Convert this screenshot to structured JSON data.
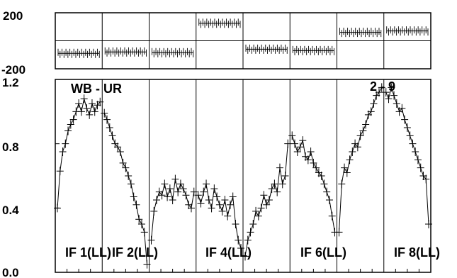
{
  "chart_data": {
    "type": "line",
    "title": "",
    "baseline_label": "WB - UR",
    "corr_label": "2 - 9",
    "grid": false,
    "color": "#000000",
    "phase_panel": {
      "ylim": [
        -200,
        200
      ],
      "ticks": [
        "200",
        "-200"
      ],
      "description_values": "approximate mean phase (deg) per IF panel",
      "values": [
        -90,
        -80,
        -85,
        125,
        -60,
        -70,
        60,
        70
      ]
    },
    "amp_panel": {
      "ylim": [
        0.0,
        1.2
      ],
      "ticks": [
        "1.2",
        "0.8",
        "0.4",
        "0.0"
      ]
    },
    "if_labels": [
      "IF 1(LL)",
      "IF 2(LL)",
      "IF 4(LL)",
      "IF 6(LL)",
      "IF 8(LL)"
    ],
    "amplitude_series": [
      [
        0.4,
        0.63,
        0.75,
        0.8,
        0.88,
        0.92,
        0.95,
        1.0,
        1.05,
        1.0,
        1.08,
        1.02,
        0.98,
        1.05,
        1.0,
        1.04,
        1.06
      ],
      [
        0.99,
        0.95,
        0.9,
        0.85,
        0.8,
        0.78,
        0.75,
        0.68,
        0.65,
        0.6,
        0.55,
        0.47,
        0.42,
        0.33,
        0.3,
        0.25,
        0.05
      ],
      [
        0.2,
        0.38,
        0.45,
        0.5,
        0.48,
        0.55,
        0.47,
        0.52,
        0.45,
        0.58,
        0.5,
        0.55,
        0.52,
        0.48,
        0.42,
        0.4,
        0.5
      ],
      [
        0.48,
        0.43,
        0.5,
        0.55,
        0.45,
        0.4,
        0.52,
        0.47,
        0.42,
        0.38,
        0.45,
        0.35,
        0.42,
        0.47,
        0.3,
        0.2,
        0.15
      ],
      [
        0.1,
        0.2,
        0.25,
        0.3,
        0.38,
        0.35,
        0.4,
        0.48,
        0.42,
        0.45,
        0.52,
        0.55,
        0.5,
        0.65,
        0.55,
        0.6,
        0.8
      ],
      [
        0.85,
        0.8,
        0.75,
        0.78,
        0.82,
        0.72,
        0.7,
        0.75,
        0.68,
        0.65,
        0.62,
        0.6,
        0.55,
        0.5,
        0.45,
        0.35,
        0.25
      ],
      [
        0.25,
        0.55,
        0.65,
        0.62,
        0.7,
        0.75,
        0.8,
        0.78,
        0.85,
        0.88,
        0.92,
        0.98,
        1.0,
        1.05,
        1.1,
        1.12,
        1.15
      ],
      [
        1.12,
        1.08,
        1.15,
        1.1,
        1.05,
        1.0,
        1.02,
        0.95,
        0.9,
        0.85,
        0.8,
        0.75,
        0.7,
        0.65,
        0.6,
        0.58,
        0.3
      ]
    ]
  }
}
